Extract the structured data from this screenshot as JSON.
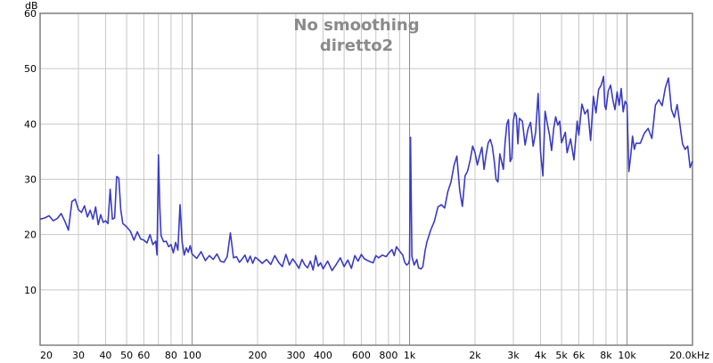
{
  "chart_data": {
    "type": "line",
    "title": "No smoothing",
    "subtitle": "diretto2",
    "ylabel": "dB",
    "xlabel": "",
    "x_scale": "log",
    "xlim": [
      20,
      20000
    ],
    "ylim": [
      0,
      60
    ],
    "grid": true,
    "colors": {
      "line": "#3b3bc4",
      "grid": "#c8c8c8",
      "decade": "#8a8a8a",
      "frame": "#7f7f7f"
    },
    "y_ticks": [
      {
        "value": 10,
        "label": "10"
      },
      {
        "value": 20,
        "label": "20"
      },
      {
        "value": 30,
        "label": "30"
      },
      {
        "value": 40,
        "label": "40"
      },
      {
        "value": 50,
        "label": "50"
      },
      {
        "value": 60,
        "label": "60"
      }
    ],
    "x_ticks": [
      {
        "value": 20,
        "label": "20"
      },
      {
        "value": 30,
        "label": "30"
      },
      {
        "value": 40,
        "label": "40"
      },
      {
        "value": 50,
        "label": "50"
      },
      {
        "value": 60,
        "label": "60"
      },
      {
        "value": 80,
        "label": "80"
      },
      {
        "value": 100,
        "label": "100"
      },
      {
        "value": 200,
        "label": "200"
      },
      {
        "value": 300,
        "label": "300"
      },
      {
        "value": 400,
        "label": "400"
      },
      {
        "value": 600,
        "label": "600"
      },
      {
        "value": 800,
        "label": "800"
      },
      {
        "value": 1000,
        "label": "1k"
      },
      {
        "value": 2000,
        "label": "2k"
      },
      {
        "value": 3000,
        "label": "3k"
      },
      {
        "value": 4000,
        "label": "4k"
      },
      {
        "value": 5000,
        "label": "5k"
      },
      {
        "value": 6000,
        "label": "6k"
      },
      {
        "value": 8000,
        "label": "8k"
      },
      {
        "value": 10000,
        "label": "10k"
      },
      {
        "value": 20000,
        "label": "20.0kHz"
      }
    ],
    "series": [
      {
        "points": [
          [
            20,
            22.8
          ],
          [
            21,
            23.0
          ],
          [
            22,
            23.4
          ],
          [
            23,
            22.5
          ],
          [
            24,
            22.9
          ],
          [
            25,
            23.8
          ],
          [
            26,
            22.4
          ],
          [
            27,
            20.8
          ],
          [
            28,
            26.0
          ],
          [
            29,
            26.4
          ],
          [
            30,
            24.5
          ],
          [
            31,
            24.0
          ],
          [
            32,
            25.2
          ],
          [
            33,
            23.2
          ],
          [
            34,
            24.4
          ],
          [
            35,
            22.8
          ],
          [
            36,
            25.0
          ],
          [
            37,
            21.8
          ],
          [
            38,
            23.6
          ],
          [
            39,
            22.2
          ],
          [
            40,
            22.5
          ],
          [
            41,
            22.0
          ],
          [
            42,
            28.2
          ],
          [
            43,
            22.8
          ],
          [
            44,
            23.0
          ],
          [
            45,
            30.5
          ],
          [
            46,
            30.2
          ],
          [
            47,
            24.5
          ],
          [
            48,
            22.0
          ],
          [
            50,
            21.4
          ],
          [
            52,
            20.6
          ],
          [
            54,
            19.0
          ],
          [
            56,
            20.5
          ],
          [
            58,
            19.2
          ],
          [
            60,
            19.0
          ],
          [
            62,
            18.5
          ],
          [
            64,
            20.0
          ],
          [
            66,
            18.2
          ],
          [
            68,
            18.8
          ],
          [
            69,
            16.3
          ],
          [
            70,
            34.4
          ],
          [
            71,
            25.0
          ],
          [
            72,
            19.8
          ],
          [
            74,
            18.7
          ],
          [
            76,
            18.8
          ],
          [
            78,
            17.8
          ],
          [
            80,
            18.2
          ],
          [
            82,
            16.7
          ],
          [
            84,
            18.6
          ],
          [
            86,
            17.2
          ],
          [
            88,
            25.4
          ],
          [
            90,
            18.6
          ],
          [
            92,
            16.3
          ],
          [
            94,
            17.6
          ],
          [
            96,
            16.8
          ],
          [
            98,
            18.0
          ],
          [
            100,
            16.5
          ],
          [
            105,
            15.7
          ],
          [
            110,
            16.9
          ],
          [
            115,
            15.3
          ],
          [
            120,
            16.2
          ],
          [
            125,
            15.5
          ],
          [
            130,
            16.5
          ],
          [
            135,
            15.2
          ],
          [
            140,
            15.0
          ],
          [
            145,
            16.0
          ],
          [
            150,
            20.3
          ],
          [
            155,
            15.8
          ],
          [
            160,
            16.0
          ],
          [
            165,
            15.0
          ],
          [
            170,
            15.6
          ],
          [
            175,
            16.3
          ],
          [
            180,
            15.0
          ],
          [
            185,
            16.1
          ],
          [
            190,
            14.8
          ],
          [
            195,
            15.9
          ],
          [
            200,
            15.6
          ],
          [
            210,
            14.8
          ],
          [
            220,
            15.5
          ],
          [
            230,
            14.6
          ],
          [
            240,
            16.2
          ],
          [
            250,
            15.0
          ],
          [
            260,
            14.2
          ],
          [
            270,
            16.4
          ],
          [
            280,
            14.5
          ],
          [
            290,
            15.6
          ],
          [
            300,
            14.8
          ],
          [
            310,
            13.9
          ],
          [
            320,
            15.5
          ],
          [
            330,
            14.5
          ],
          [
            340,
            14.0
          ],
          [
            350,
            15.2
          ],
          [
            360,
            13.6
          ],
          [
            370,
            16.2
          ],
          [
            380,
            14.3
          ],
          [
            390,
            14.9
          ],
          [
            400,
            13.8
          ],
          [
            420,
            15.2
          ],
          [
            440,
            13.5
          ],
          [
            460,
            14.6
          ],
          [
            480,
            15.8
          ],
          [
            500,
            14.2
          ],
          [
            520,
            15.4
          ],
          [
            540,
            13.9
          ],
          [
            560,
            16.2
          ],
          [
            580,
            15.2
          ],
          [
            600,
            16.4
          ],
          [
            620,
            15.6
          ],
          [
            650,
            15.2
          ],
          [
            680,
            14.9
          ],
          [
            700,
            16.2
          ],
          [
            720,
            15.8
          ],
          [
            750,
            16.3
          ],
          [
            780,
            16.0
          ],
          [
            800,
            16.6
          ],
          [
            830,
            17.3
          ],
          [
            850,
            16.2
          ],
          [
            870,
            17.8
          ],
          [
            900,
            17.0
          ],
          [
            930,
            16.3
          ],
          [
            950,
            15.0
          ],
          [
            970,
            14.5
          ],
          [
            990,
            14.8
          ],
          [
            1000,
            15.4
          ],
          [
            1010,
            37.6
          ],
          [
            1025,
            16.0
          ],
          [
            1050,
            14.5
          ],
          [
            1080,
            15.5
          ],
          [
            1100,
            14.0
          ],
          [
            1130,
            13.8
          ],
          [
            1150,
            14.2
          ],
          [
            1180,
            17.2
          ],
          [
            1200,
            18.6
          ],
          [
            1250,
            20.8
          ],
          [
            1300,
            22.4
          ],
          [
            1350,
            25.0
          ],
          [
            1400,
            25.4
          ],
          [
            1450,
            24.8
          ],
          [
            1500,
            27.8
          ],
          [
            1550,
            29.5
          ],
          [
            1600,
            32.5
          ],
          [
            1650,
            34.2
          ],
          [
            1700,
            28.0
          ],
          [
            1750,
            25.1
          ],
          [
            1800,
            30.6
          ],
          [
            1850,
            31.5
          ],
          [
            1900,
            33.5
          ],
          [
            1950,
            36.0
          ],
          [
            2000,
            34.8
          ],
          [
            2050,
            32.6
          ],
          [
            2100,
            34.3
          ],
          [
            2150,
            35.8
          ],
          [
            2200,
            31.8
          ],
          [
            2250,
            34.5
          ],
          [
            2300,
            36.6
          ],
          [
            2350,
            37.2
          ],
          [
            2400,
            36.0
          ],
          [
            2450,
            33.4
          ],
          [
            2500,
            30.0
          ],
          [
            2550,
            29.5
          ],
          [
            2600,
            34.6
          ],
          [
            2650,
            33.2
          ],
          [
            2700,
            31.8
          ],
          [
            2750,
            36.6
          ],
          [
            2800,
            40.0
          ],
          [
            2850,
            40.8
          ],
          [
            2900,
            33.2
          ],
          [
            2950,
            33.8
          ],
          [
            3000,
            40.6
          ],
          [
            3050,
            42.0
          ],
          [
            3100,
            41.4
          ],
          [
            3150,
            36.4
          ],
          [
            3200,
            41.0
          ],
          [
            3300,
            40.5
          ],
          [
            3400,
            36.2
          ],
          [
            3500,
            39.0
          ],
          [
            3600,
            40.3
          ],
          [
            3700,
            36.0
          ],
          [
            3800,
            38.5
          ],
          [
            3900,
            45.5
          ],
          [
            4000,
            35.0
          ],
          [
            4100,
            30.6
          ],
          [
            4200,
            42.3
          ],
          [
            4300,
            40.0
          ],
          [
            4400,
            38.0
          ],
          [
            4500,
            35.2
          ],
          [
            4600,
            39.2
          ],
          [
            4700,
            41.3
          ],
          [
            4800,
            39.8
          ],
          [
            4900,
            40.5
          ],
          [
            5000,
            36.6
          ],
          [
            5200,
            38.5
          ],
          [
            5300,
            34.8
          ],
          [
            5500,
            37.3
          ],
          [
            5700,
            33.5
          ],
          [
            5900,
            40.5
          ],
          [
            6000,
            38.0
          ],
          [
            6200,
            43.6
          ],
          [
            6400,
            41.8
          ],
          [
            6600,
            42.6
          ],
          [
            6800,
            37.0
          ],
          [
            7000,
            45.0
          ],
          [
            7200,
            42.0
          ],
          [
            7400,
            46.2
          ],
          [
            7600,
            47.0
          ],
          [
            7800,
            48.6
          ],
          [
            7900,
            43.3
          ],
          [
            8000,
            42.6
          ],
          [
            8200,
            46.0
          ],
          [
            8400,
            47.0
          ],
          [
            8600,
            44.4
          ],
          [
            8800,
            42.6
          ],
          [
            9000,
            45.8
          ],
          [
            9200,
            43.4
          ],
          [
            9400,
            46.4
          ],
          [
            9600,
            42.2
          ],
          [
            9800,
            44.1
          ],
          [
            10000,
            43.5
          ],
          [
            10200,
            31.4
          ],
          [
            10400,
            34.3
          ],
          [
            10600,
            37.8
          ],
          [
            10800,
            35.4
          ],
          [
            11000,
            36.5
          ],
          [
            11500,
            36.5
          ],
          [
            12000,
            38.3
          ],
          [
            12500,
            39.2
          ],
          [
            13000,
            37.4
          ],
          [
            13500,
            43.4
          ],
          [
            14000,
            44.4
          ],
          [
            14500,
            43.3
          ],
          [
            15000,
            46.5
          ],
          [
            15500,
            48.3
          ],
          [
            16000,
            42.6
          ],
          [
            16500,
            41.2
          ],
          [
            17000,
            43.5
          ],
          [
            17500,
            40.0
          ],
          [
            18000,
            36.4
          ],
          [
            18500,
            35.4
          ],
          [
            19000,
            36.0
          ],
          [
            19500,
            32.1
          ],
          [
            20000,
            33.3
          ]
        ]
      }
    ]
  }
}
